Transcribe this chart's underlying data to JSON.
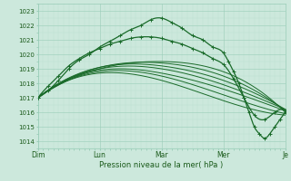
{
  "bg_color": "#cce8dc",
  "grid_major_color": "#99cdb8",
  "grid_minor_color": "#b8dece",
  "line_color": "#1a6b2a",
  "xlabel": "Pression niveau de la mer( hPa )",
  "ylim": [
    1013.5,
    1023.5
  ],
  "xlim": [
    0,
    192
  ],
  "yticks": [
    1014,
    1015,
    1016,
    1017,
    1018,
    1019,
    1020,
    1021,
    1022,
    1023
  ],
  "day_labels": [
    "Dim",
    "Lun",
    "Mar",
    "Mer",
    "Je"
  ],
  "day_positions": [
    0,
    48,
    96,
    144,
    192
  ],
  "curves": [
    {
      "points_x": [
        0,
        8,
        16,
        24,
        32,
        40,
        48,
        56,
        64,
        72,
        80,
        88,
        96,
        104,
        112,
        120,
        128,
        136,
        144,
        148,
        152,
        156,
        160,
        164,
        168,
        172,
        176,
        180,
        184,
        188,
        192
      ],
      "points_y": [
        1017.0,
        1017.5,
        1018.2,
        1019.0,
        1019.6,
        1020.0,
        1020.5,
        1020.9,
        1021.3,
        1021.7,
        1022.0,
        1022.4,
        1022.5,
        1022.2,
        1021.8,
        1021.3,
        1021.0,
        1020.5,
        1020.1,
        1019.5,
        1018.8,
        1018.0,
        1017.0,
        1016.0,
        1015.0,
        1014.5,
        1014.2,
        1014.5,
        1015.0,
        1015.5,
        1016.0
      ],
      "marker": true,
      "lw": 0.9
    },
    {
      "points_x": [
        0,
        8,
        16,
        24,
        32,
        40,
        48,
        56,
        64,
        72,
        80,
        88,
        96,
        104,
        112,
        120,
        128,
        136,
        144,
        152,
        160,
        168,
        176,
        184,
        192
      ],
      "points_y": [
        1017.0,
        1017.8,
        1018.5,
        1019.2,
        1019.7,
        1020.1,
        1020.4,
        1020.7,
        1020.9,
        1021.1,
        1021.2,
        1021.2,
        1021.1,
        1020.9,
        1020.7,
        1020.4,
        1020.1,
        1019.7,
        1019.3,
        1018.3,
        1017.0,
        1015.8,
        1015.5,
        1016.0,
        1016.1
      ],
      "marker": true,
      "lw": 0.9
    },
    {
      "points_x": [
        0,
        48,
        96,
        144,
        192
      ],
      "points_y": [
        1017.0,
        1019.0,
        1019.5,
        1018.8,
        1016.0
      ],
      "marker": false,
      "lw": 0.7
    },
    {
      "points_x": [
        0,
        48,
        96,
        144,
        192
      ],
      "points_y": [
        1017.0,
        1019.1,
        1019.4,
        1018.5,
        1016.1
      ],
      "marker": false,
      "lw": 0.7
    },
    {
      "points_x": [
        0,
        48,
        96,
        144,
        192
      ],
      "points_y": [
        1017.0,
        1019.1,
        1019.2,
        1018.2,
        1016.2
      ],
      "marker": false,
      "lw": 0.7
    },
    {
      "points_x": [
        0,
        48,
        96,
        144,
        192
      ],
      "points_y": [
        1017.0,
        1019.0,
        1019.0,
        1017.9,
        1016.2
      ],
      "marker": false,
      "lw": 0.7
    },
    {
      "points_x": [
        0,
        48,
        96,
        144,
        192
      ],
      "points_y": [
        1017.0,
        1018.9,
        1018.7,
        1017.6,
        1016.1
      ],
      "marker": false,
      "lw": 0.7
    },
    {
      "points_x": [
        0,
        48,
        96,
        144,
        192
      ],
      "points_y": [
        1017.0,
        1018.8,
        1018.5,
        1017.2,
        1015.9
      ],
      "marker": false,
      "lw": 0.7
    },
    {
      "points_x": [
        0,
        48,
        96,
        144,
        192
      ],
      "points_y": [
        1017.0,
        1018.7,
        1018.2,
        1016.8,
        1015.8
      ],
      "marker": false,
      "lw": 0.7
    }
  ]
}
